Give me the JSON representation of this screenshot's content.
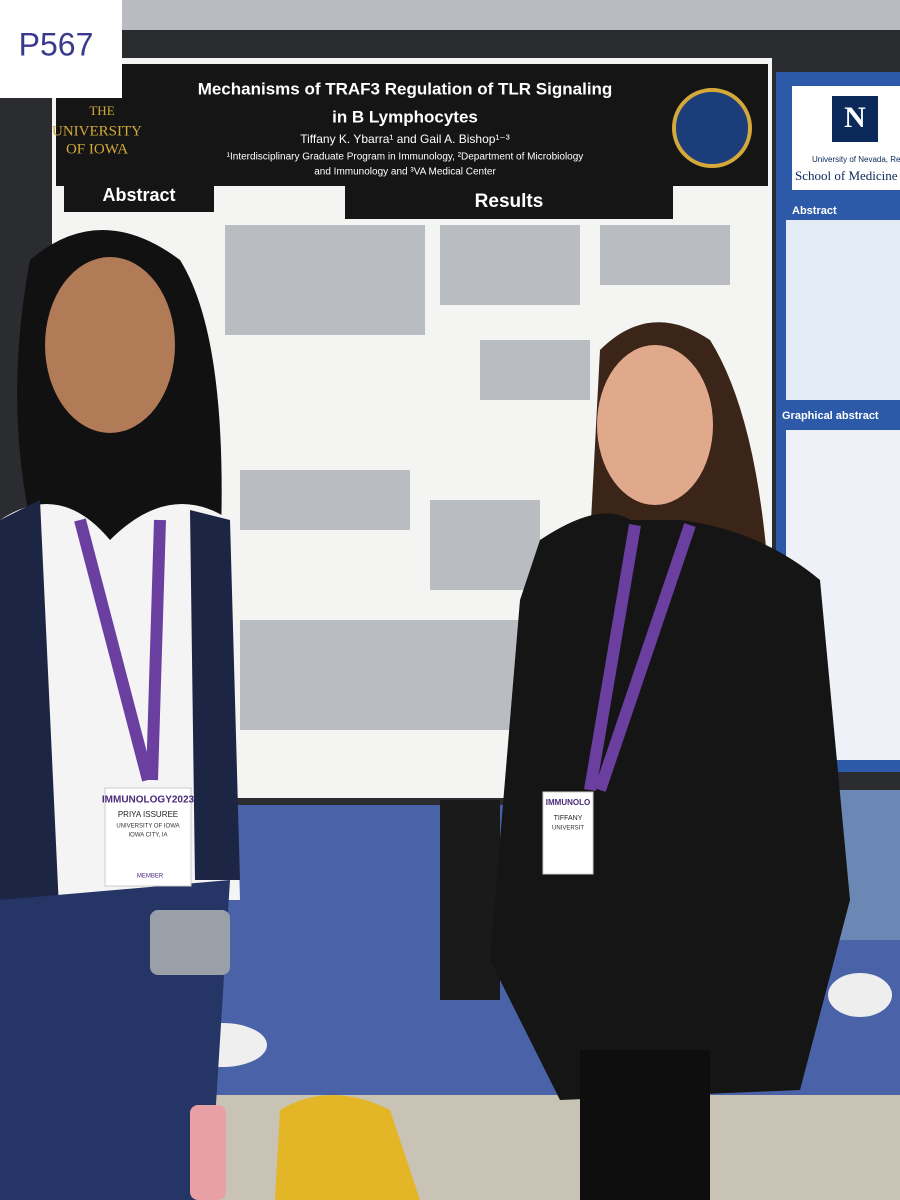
{
  "booth_sign": "P567",
  "poster": {
    "logo": [
      "THE",
      "UNIVERSITY",
      "OF IOWA"
    ],
    "title_lines": [
      "Mechanisms of TRAF3 Regulation of TLR Signaling",
      "in B Lymphocytes"
    ],
    "authors": "Tiffany K. Ybarra¹ and Gail A. Bishop¹⁻³",
    "affiliation_lines": [
      "¹Interdisciplinary Graduate Program in Immunology, ²Department of Microbiology",
      "and Immunology and ³VA Medical Center"
    ],
    "sections": [
      "Abstract",
      "Results"
    ]
  },
  "neighbor_poster": {
    "logo": "N",
    "institution": "University of Nevada, Reno",
    "school": "School of Medicine",
    "sections": [
      "Abstract",
      "Graphical abstract"
    ]
  },
  "badges": [
    {
      "event": "IMMUNOLOGY2023",
      "name": "PRIYA ISSUREE",
      "affiliation": "UNIVERSITY OF IOWA",
      "location": "IOWA CITY, IA",
      "type": "MEMBER"
    },
    {
      "event": "IMMUNOLO",
      "name": "TIFFANY",
      "affiliation": "UNIVERSIT"
    }
  ]
}
